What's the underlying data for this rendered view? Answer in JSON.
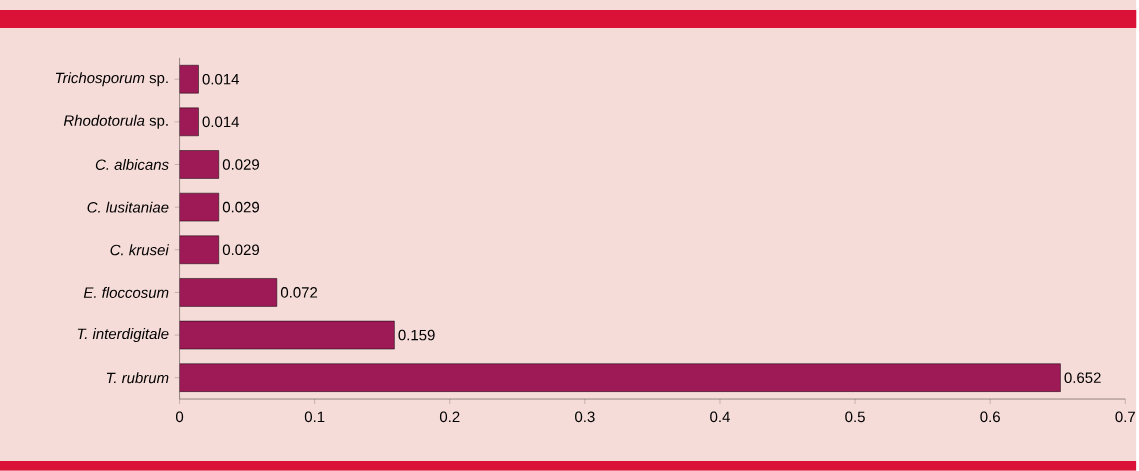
{
  "chart_data": {
    "type": "bar",
    "orientation": "horizontal",
    "categories": [
      "*Trichosporum* sp.",
      "*Rhodotorula* sp.",
      "*C. albicans*",
      "*C. lusitaniae*",
      "*C. krusei*",
      "*E. floccosum*",
      "*T. interdigitale*",
      "*T. rubrum*"
    ],
    "values": [
      0.014,
      0.014,
      0.029,
      0.029,
      0.029,
      0.072,
      0.159,
      0.652
    ],
    "color": "#9e1a57",
    "xlim": [
      0,
      0.7
    ],
    "xticks": [
      0,
      0.1,
      0.2,
      0.3,
      0.4,
      0.5,
      0.6,
      0.7
    ],
    "data_labels": true,
    "grid": false
  }
}
